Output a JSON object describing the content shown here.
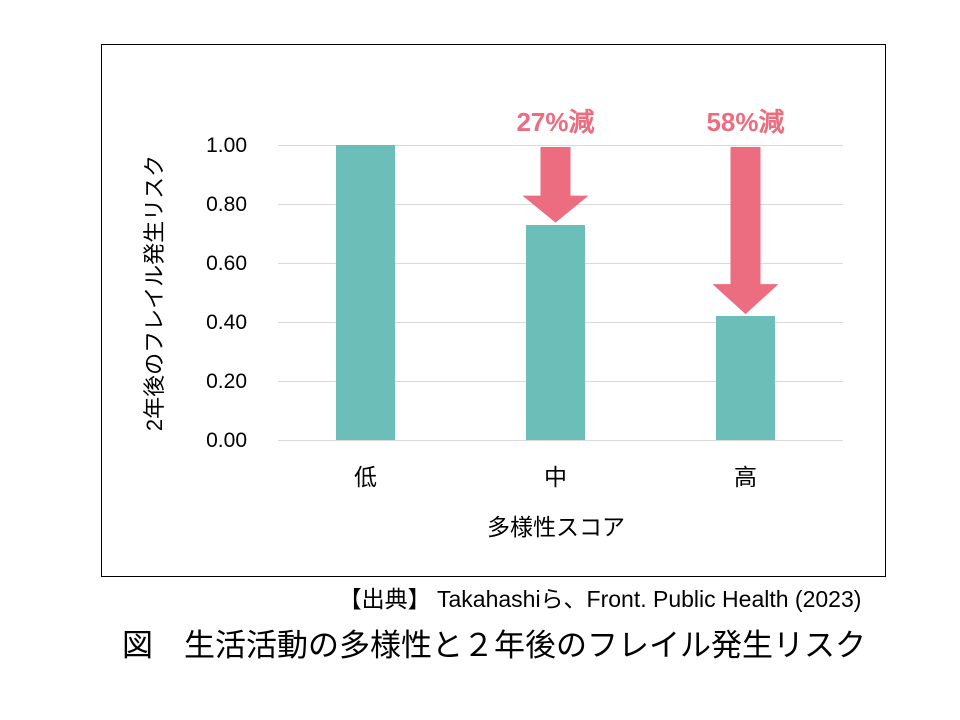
{
  "chart_data": {
    "type": "bar",
    "title": "",
    "categories": [
      "低",
      "中",
      "高"
    ],
    "values": [
      1.0,
      0.73,
      0.42
    ],
    "xlabel": "多様性スコア",
    "ylabel": "2年後のフレイル発生リスク",
    "ylim": [
      0.0,
      1.0
    ],
    "yticks": [
      "1.00",
      "0.80",
      "0.60",
      "0.40",
      "0.20",
      "0.00"
    ],
    "ytick_values": [
      1.0,
      0.8,
      0.6,
      0.4,
      0.2,
      0.0
    ],
    "grid": true,
    "legend": false,
    "annotations": [
      {
        "label": "27%減",
        "target_category": "中",
        "shape": "down-arrow"
      },
      {
        "label": "58%減",
        "target_category": "高",
        "shape": "down-arrow"
      }
    ]
  },
  "colors": {
    "bar": "#6cbeb8",
    "arrow": "#ed6d80",
    "gridline": "#d9d9d9",
    "text": "#000000"
  },
  "source_line": "【出典】 Takahashiら、Front. Public Health (2023)",
  "caption": "図　生活活動の多様性と２年後のフレイル発生リスク"
}
